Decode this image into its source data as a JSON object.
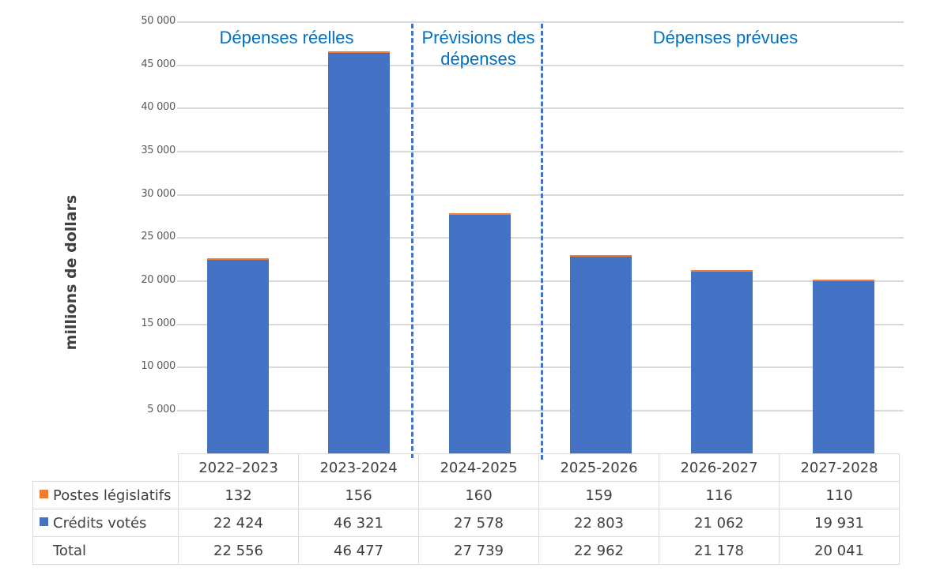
{
  "chart_data": {
    "type": "bar",
    "stacked": true,
    "title": "",
    "xlabel": "",
    "ylabel": "millions de dollars",
    "ylim": [
      0,
      50000
    ],
    "yticks": [
      "5 000",
      "10 000",
      "15 000",
      "20 000",
      "25 000",
      "30 000",
      "35 000",
      "40 000",
      "45 000",
      "50 000"
    ],
    "grid": true,
    "categories": [
      "2022–2023",
      "2023-2024",
      "2024-2025",
      "2025-2026",
      "2026-2027",
      "2027-2028"
    ],
    "series": [
      {
        "name": "Postes législatifs",
        "color": "#ed7d31",
        "values": [
          132,
          156,
          160,
          159,
          116,
          110
        ]
      },
      {
        "name": "Crédits votés",
        "color": "#4472c4",
        "values": [
          22424,
          46321,
          27578,
          22803,
          21062,
          19931
        ]
      }
    ],
    "totals": [
      22556,
      46477,
      27739,
      22962,
      21178,
      20041
    ],
    "annotations": [
      {
        "text": "Dépenses réelles",
        "covers": [
          "2022–2023",
          "2023-2024"
        ]
      },
      {
        "text": "Prévisions des dépenses",
        "covers": [
          "2024-2025"
        ]
      },
      {
        "text": "Dépenses prévues",
        "covers": [
          "2025-2026",
          "2026-2027",
          "2027-2028"
        ]
      }
    ],
    "legend_position": "data-table"
  },
  "axis": {
    "ylabel": "millions de dollars",
    "ticks": [
      "5 000",
      "10 000",
      "15 000",
      "20 000",
      "25 000",
      "30 000",
      "35 000",
      "40 000",
      "45 000",
      "50 000"
    ]
  },
  "sections": {
    "actual": "Dépenses réelles",
    "forecast_line1": "Prévisions des",
    "forecast_line2": "dépenses",
    "planned": "Dépenses prévues"
  },
  "table": {
    "headers": [
      "2022–2023",
      "2023-2024",
      "2024-2025",
      "2025-2026",
      "2026-2027",
      "2027-2028"
    ],
    "rows": [
      {
        "label": "Postes législatifs",
        "swatch": "#ed7d31",
        "values": [
          "132",
          "156",
          "160",
          "159",
          "116",
          "110"
        ]
      },
      {
        "label": "Crédits votés",
        "swatch": "#4472c4",
        "values": [
          "22 424",
          "46 321",
          "27 578",
          "22 803",
          "21 062",
          "19 931"
        ]
      },
      {
        "label": "Total",
        "swatch": "",
        "values": [
          "22 556",
          "46 477",
          "27 739",
          "22 962",
          "21 178",
          "20 041"
        ]
      }
    ]
  }
}
